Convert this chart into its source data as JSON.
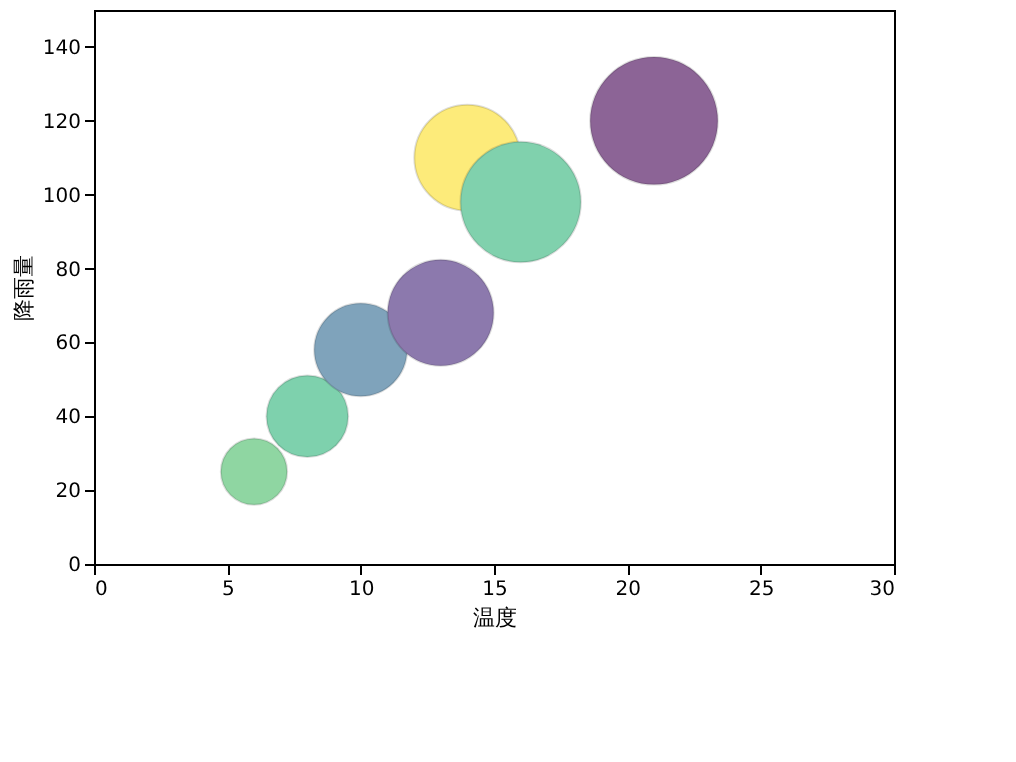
{
  "chart_data": {
    "type": "bubble",
    "xlabel": "温度",
    "ylabel": "降雨量",
    "x": [
      6,
      8,
      10,
      13,
      14,
      16,
      21
    ],
    "values": [
      25,
      40,
      58,
      68,
      110,
      98,
      120
    ],
    "sizes": [
      0.27,
      0.41,
      0.53,
      0.69,
      0.69,
      0.89,
      1
    ],
    "colors": [
      "#8fd6a2",
      "#7ed1ad",
      "#7fa3bb",
      "#8c79ad",
      "#fdeb7a",
      "#80d1ad",
      "#8c6496"
    ],
    "xlim": [
      0,
      30
    ],
    "xticks": [
      0,
      5,
      10,
      15,
      20,
      25,
      30
    ],
    "ylim": [
      0,
      150
    ],
    "yticks": [
      0,
      20,
      40,
      60,
      80,
      100,
      120,
      140
    ],
    "grid": false,
    "legend": false
  }
}
